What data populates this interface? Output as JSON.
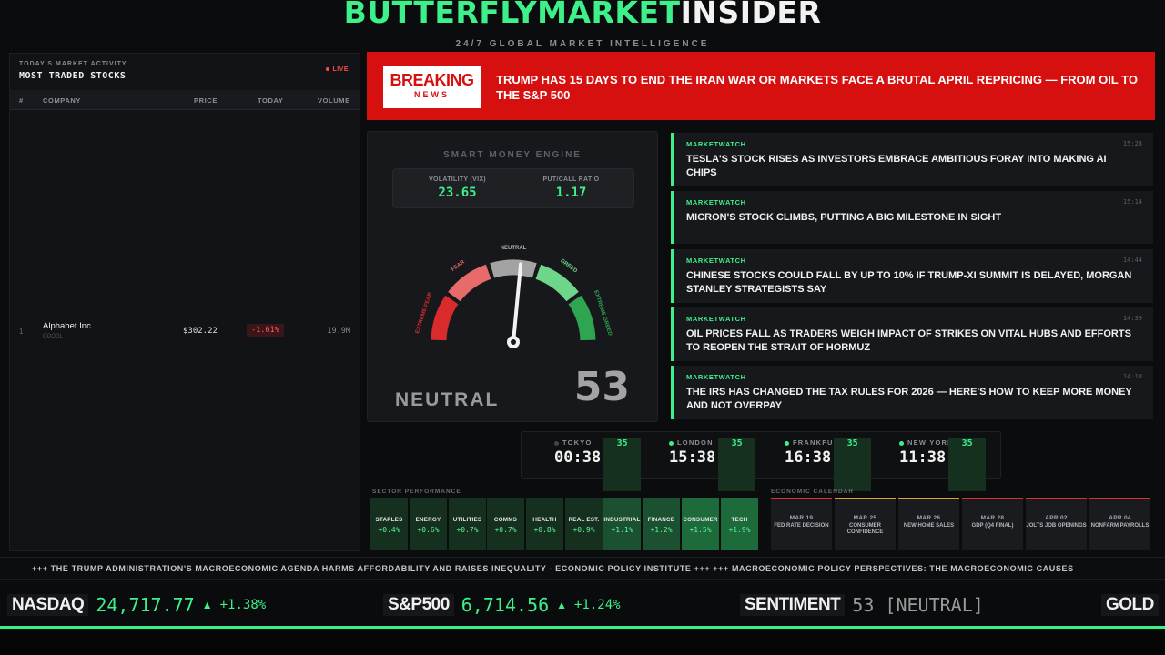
{
  "header": {
    "brand_part1": "BUTTERFLYMARKET",
    "brand_part2": "INSIDER",
    "tagline": "24/7 GLOBAL MARKET INTELLIGENCE"
  },
  "left_panel": {
    "kicker": "TODAY'S MARKET ACTIVITY",
    "title": "MOST TRADED STOCKS",
    "live_label": "LIVE",
    "columns": [
      "#",
      "COMPANY",
      "PRICE",
      "TODAY",
      "VOLUME"
    ],
    "rows": [
      {
        "idx": "1",
        "company": "Alphabet Inc.",
        "ticker": "GOOGL",
        "price": "$302.22",
        "change": "-1.61%",
        "volume": "19.9M"
      }
    ]
  },
  "breaking": {
    "badge_top": "BREAKING",
    "badge_bottom": "NEWS",
    "headline": "TRUMP HAS 15 DAYS TO END THE IRAN WAR OR MARKETS FACE A BRUTAL APRIL REPRICING — FROM OIL TO THE S&P 500"
  },
  "gauge": {
    "title": "SMART MONEY ENGINE",
    "vix_label": "VOLATILITY (VIX)",
    "vix_value": "23.65",
    "pcr_label": "PUT/CALL RATIO",
    "pcr_value": "1.17",
    "zones": [
      "EXTREME FEAR",
      "FEAR",
      "NEUTRAL",
      "GREED",
      "EXTREME GREED"
    ],
    "sentiment_label": "NEUTRAL",
    "sentiment_value": "53",
    "score": 53,
    "zone_colors": [
      "#d92b2b",
      "#e86b6b",
      "#a3a3a3",
      "#6ed68a",
      "#2fa552"
    ]
  },
  "news": [
    {
      "source": "MARKETWATCH",
      "time": "15:28",
      "text": "TESLA'S STOCK RISES AS INVESTORS EMBRACE AMBITIOUS FORAY INTO MAKING AI CHIPS"
    },
    {
      "source": "MARKETWATCH",
      "time": "15:14",
      "text": "MICRON'S STOCK CLIMBS, PUTTING A BIG MILESTONE IN SIGHT"
    },
    {
      "source": "MARKETWATCH",
      "time": "14:44",
      "text": "CHINESE STOCKS COULD FALL BY UP TO 10% IF TRUMP-XI SUMMIT IS DELAYED, MORGAN STANLEY STRATEGISTS SAY"
    },
    {
      "source": "MARKETWATCH",
      "time": "14:39",
      "text": "OIL PRICES FALL AS TRADERS WEIGH IMPACT OF STRIKES ON VITAL HUBS AND EFFORTS TO REOPEN THE STRAIT OF HORMUZ"
    },
    {
      "source": "MARKETWATCH",
      "time": "14:18",
      "text": "THE IRS HAS CHANGED THE TAX RULES FOR 2026 — HERE'S HOW TO KEEP MORE MONEY AND NOT OVERPAY"
    }
  ],
  "clocks": [
    {
      "city": "TOKYO",
      "time": "00:38",
      "sec": "35",
      "open": false
    },
    {
      "city": "LONDON",
      "time": "15:38",
      "sec": "35",
      "open": true
    },
    {
      "city": "FRANKFURT",
      "time": "16:38",
      "sec": "35",
      "open": true
    },
    {
      "city": "NEW YORK",
      "time": "11:38",
      "sec": "35",
      "open": true
    }
  ],
  "sectors": {
    "label": "SECTOR PERFORMANCE",
    "items": [
      {
        "name": "STAPLES",
        "value": "+0.4%"
      },
      {
        "name": "ENERGY",
        "value": "+0.6%"
      },
      {
        "name": "UTILITIES",
        "value": "+0.7%"
      },
      {
        "name": "COMMS",
        "value": "+0.7%"
      },
      {
        "name": "HEALTH",
        "value": "+0.8%"
      },
      {
        "name": "REAL EST.",
        "value": "+0.9%"
      },
      {
        "name": "INDUSTRIAL",
        "value": "+1.1%"
      },
      {
        "name": "FINANCE",
        "value": "+1.2%"
      },
      {
        "name": "CONSUMER",
        "value": "+1.5%"
      },
      {
        "name": "TECH",
        "value": "+1.9%"
      }
    ]
  },
  "calendar": {
    "label": "ECONOMIC CALENDAR",
    "items": [
      {
        "date": "MAR 19",
        "event": "FED RATE DECISION",
        "color": "#d93030"
      },
      {
        "date": "MAR 25",
        "event": "CONSUMER CONFIDENCE",
        "color": "#d9a530"
      },
      {
        "date": "MAR 26",
        "event": "NEW HOME SALES",
        "color": "#d9a530"
      },
      {
        "date": "MAR 28",
        "event": "GDP (Q4 FINAL)",
        "color": "#d93030"
      },
      {
        "date": "APR 02",
        "event": "JOLTS JOB OPENINGS",
        "color": "#d93030"
      },
      {
        "date": "APR 04",
        "event": "NONFARM PAYROLLS",
        "color": "#d93030"
      }
    ]
  },
  "ticker": {
    "text": "+++ THE TRUMP ADMINISTRATION'S MACROECONOMIC AGENDA HARMS AFFORDABILITY AND RAISES INEQUALITY - ECONOMIC POLICY INSTITUTE +++ +++ MACROECONOMIC POLICY PERSPECTIVES: THE MACROECONOMIC CAUSES"
  },
  "quotes": [
    {
      "name": "NASDAQ",
      "value": "24,717.77",
      "arrow": "▲",
      "change": "+1.38%"
    },
    {
      "name": "S&P500",
      "value": "6,714.56",
      "arrow": "▲",
      "change": "+1.24%"
    },
    {
      "name": "SENTIMENT",
      "value": "53 [NEUTRAL]"
    },
    {
      "name": "GOLD"
    }
  ],
  "colors": {
    "accent": "#3ef08a",
    "breaking": "#d60f0f",
    "negative": "#ff5a5a"
  }
}
